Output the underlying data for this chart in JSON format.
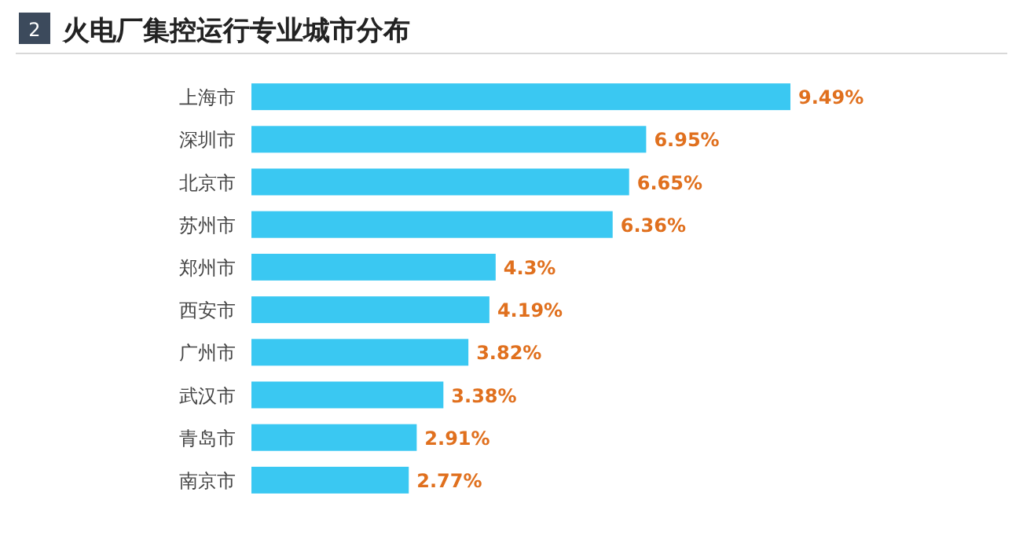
{
  "chart_data": {
    "type": "bar",
    "orientation": "horizontal",
    "title": "火电厂集控运行专业城市分布",
    "annotations": [
      "2"
    ],
    "categories": [
      "上海市",
      "深圳市",
      "北京市",
      "苏州市",
      "郑州市",
      "西安市",
      "广州市",
      "武汉市",
      "青岛市",
      "南京市"
    ],
    "values": [
      9.49,
      6.95,
      6.65,
      6.36,
      4.3,
      4.19,
      3.82,
      3.38,
      2.91,
      2.77
    ],
    "value_labels": [
      "9.49%",
      "6.95%",
      "6.65%",
      "6.36%",
      "4.3%",
      "4.19%",
      "3.82%",
      "3.38%",
      "2.91%",
      "2.77%"
    ],
    "color": "#3ac8f2"
  }
}
